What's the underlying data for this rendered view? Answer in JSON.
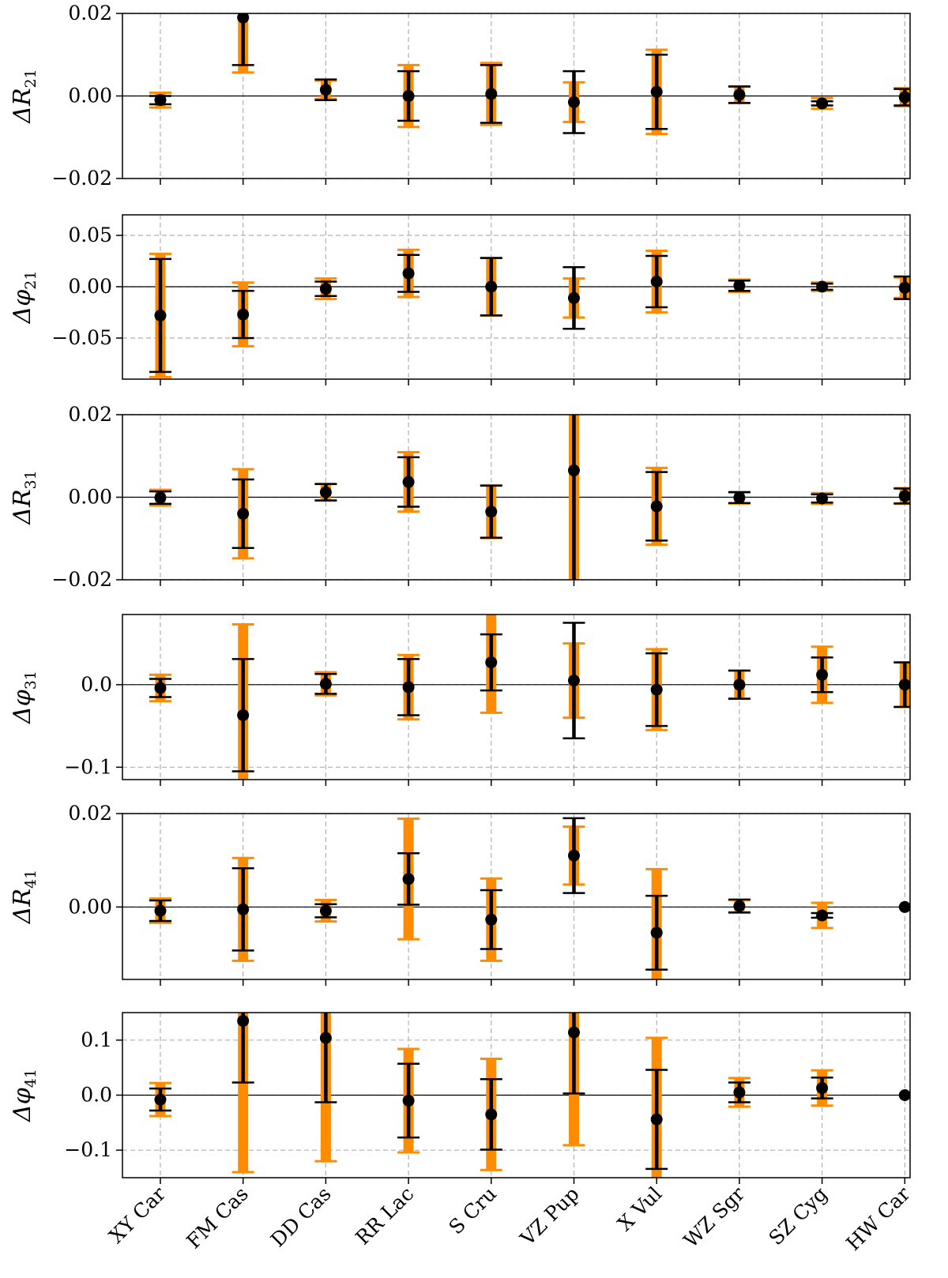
{
  "colors": {
    "orange": "#ff8c00",
    "black": "#000000",
    "grid": "#b0b0b0",
    "zero_line": "#000000"
  },
  "chart_data": {
    "type": "errorbar",
    "categories": [
      "XY Car",
      "FM Cas",
      "DD Cas",
      "RR Lac",
      "S Cru",
      "VZ Pup",
      "X Vul",
      "WZ Sgr",
      "SZ Cyg",
      "HW Car"
    ],
    "grid": true,
    "panels": [
      {
        "ylabel": "ΔR",
        "ylabel_sub": "21",
        "ylim": [
          -0.02,
          0.02
        ],
        "yticks": [
          -0.02,
          0.0,
          0.02
        ],
        "ytick_labels": [
          "−0.02",
          "0.00",
          "0.02"
        ],
        "values": [
          -0.001,
          0.019,
          0.0015,
          0.0,
          0.0005,
          -0.0015,
          0.001,
          0.0003,
          -0.0018,
          -0.0003
        ],
        "black_err": [
          0.001,
          0.0115,
          0.0025,
          0.006,
          0.007,
          0.0075,
          0.009,
          0.002,
          0.0005,
          0.002
        ],
        "orange_err": [
          0.0018,
          0.0133,
          0.0022,
          0.0075,
          0.0075,
          0.0048,
          0.0102,
          0.002,
          0.0013,
          0.0022
        ]
      },
      {
        "ylabel": "Δφ",
        "ylabel_sub": "21",
        "ylim": [
          -0.09,
          0.07
        ],
        "yticks": [
          -0.05,
          0.0,
          0.05
        ],
        "ytick_labels": [
          "−0.05",
          "0.00",
          "0.05"
        ],
        "values": [
          -0.028,
          -0.027,
          -0.002,
          0.013,
          0.0,
          -0.011,
          0.005,
          0.001,
          0.0,
          -0.001
        ],
        "black_err": [
          0.055,
          0.023,
          0.007,
          0.018,
          0.028,
          0.03,
          0.025,
          0.005,
          0.003,
          0.011
        ],
        "orange_err": [
          0.06,
          0.031,
          0.01,
          0.023,
          0.028,
          0.019,
          0.03,
          0.006,
          0.004,
          0.01
        ]
      },
      {
        "ylabel": "ΔR",
        "ylabel_sub": "31",
        "ylim": [
          -0.02,
          0.02
        ],
        "yticks": [
          -0.02,
          0.0,
          0.02
        ],
        "ytick_labels": [
          "−0.02",
          "0.00",
          "0.02"
        ],
        "values": [
          -0.0001,
          -0.004,
          0.0012,
          0.0037,
          -0.0035,
          0.0065,
          -0.0022,
          -0.0001,
          -0.0003,
          0.0003
        ],
        "black_err": [
          0.0015,
          0.0083,
          0.002,
          0.006,
          0.0063,
          0.03,
          0.0083,
          0.0013,
          0.001,
          0.0018
        ],
        "orange_err": [
          0.0019,
          0.0108,
          0.002,
          0.0072,
          0.0064,
          0.03,
          0.0093,
          0.0014,
          0.0013,
          0.0019
        ]
      },
      {
        "ylabel": "Δφ",
        "ylabel_sub": "31",
        "ylim": [
          -0.115,
          0.085
        ],
        "yticks": [
          -0.1,
          0.0
        ],
        "ytick_labels": [
          "−0.1",
          "0.0"
        ],
        "values": [
          -0.004,
          -0.037,
          0.001,
          -0.003,
          0.027,
          0.005,
          -0.006,
          0.0,
          0.012,
          0.0
        ],
        "black_err": [
          0.011,
          0.068,
          0.012,
          0.034,
          0.034,
          0.07,
          0.044,
          0.017,
          0.021,
          0.027
        ],
        "orange_err": [
          0.016,
          0.11,
          0.014,
          0.039,
          0.061,
          0.045,
          0.049,
          0.017,
          0.034,
          0.027
        ]
      },
      {
        "ylabel": "ΔR",
        "ylabel_sub": "41",
        "ylim": [
          -0.0155,
          0.02
        ],
        "yticks": [
          0.0,
          0.02
        ],
        "ytick_labels": [
          "0.00",
          "0.02"
        ],
        "values": [
          -0.0008,
          -0.0005,
          -0.0008,
          0.006,
          -0.0027,
          0.011,
          -0.0055,
          0.0002,
          -0.0018,
          0.0
        ],
        "black_err": [
          0.0022,
          0.0088,
          0.0014,
          0.0055,
          0.0063,
          0.008,
          0.0079,
          0.0014,
          0.0005,
          0.0
        ],
        "orange_err": [
          0.0026,
          0.011,
          0.0023,
          0.0129,
          0.0088,
          0.0062,
          0.0136,
          0.0013,
          0.0027,
          0.0
        ]
      },
      {
        "ylabel": "Δφ",
        "ylabel_sub": "41",
        "ylim": [
          -0.15,
          0.15
        ],
        "yticks": [
          -0.1,
          0.0,
          0.1
        ],
        "ytick_labels": [
          "−0.1",
          "0.0",
          "0.1"
        ],
        "values": [
          -0.008,
          0.135,
          0.104,
          -0.01,
          -0.035,
          0.114,
          -0.044,
          0.005,
          0.013,
          0.0
        ],
        "black_err": [
          0.02,
          0.112,
          0.117,
          0.067,
          0.064,
          0.111,
          0.09,
          0.018,
          0.019,
          0.0
        ],
        "orange_err": [
          0.03,
          0.275,
          0.224,
          0.094,
          0.101,
          0.205,
          0.148,
          0.026,
          0.032,
          0.0
        ]
      }
    ]
  }
}
